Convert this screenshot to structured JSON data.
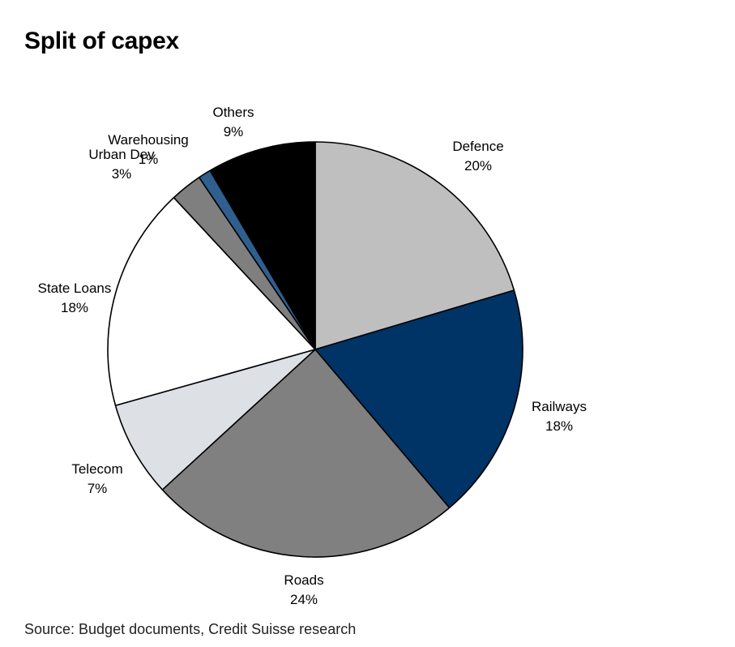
{
  "chart_data": {
    "type": "pie",
    "title": "Split of capex",
    "source": "Source: Budget documents, Credit Suisse research",
    "slices": [
      {
        "label": "Defence",
        "pct_label": "20%",
        "value": 20.5,
        "color": "#bfbfbf"
      },
      {
        "label": "Railways",
        "pct_label": "18%",
        "value": 18.5,
        "color": "#003366"
      },
      {
        "label": "Roads",
        "pct_label": "24%",
        "value": 24.5,
        "color": "#808080"
      },
      {
        "label": "Telecom",
        "pct_label": "7%",
        "value": 7.5,
        "color": "#dde1e6"
      },
      {
        "label": "State Loans",
        "pct_label": "18%",
        "value": 17.5,
        "color": "#ffffff"
      },
      {
        "label": "Urban Dev",
        "pct_label": "3%",
        "value": 2.5,
        "color": "#7f7f7f"
      },
      {
        "label": "Warehousing",
        "pct_label": "1%",
        "value": 1.0,
        "color": "#2e5f8f"
      },
      {
        "label": "Others",
        "pct_label": "9%",
        "value": 8.5,
        "color": "#000000"
      }
    ]
  }
}
